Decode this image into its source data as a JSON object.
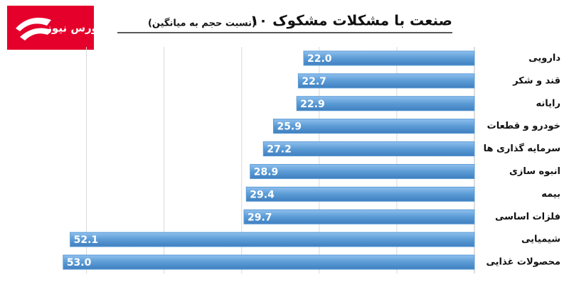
{
  "logo": "بورس نیوز",
  "chart_data": {
    "type": "bar",
    "orientation": "horizontal",
    "title": "۱۰ صنعت با مشکلات مشکوک",
    "subtitle": "(نسبت حجم به میانگین)",
    "categories": [
      "دارویی",
      "قند و شکر",
      "رایانه",
      "خودرو و قطعات",
      "سرمایه گذاری ها",
      "انبوه سازی",
      "بیمه",
      "فلزات اساسی",
      "شیمیایی",
      "محصولات غذایی"
    ],
    "values": [
      22.0,
      22.7,
      22.9,
      25.9,
      27.2,
      28.9,
      29.4,
      29.7,
      52.1,
      53.0
    ],
    "value_labels": [
      "22.0",
      "22.7",
      "22.9",
      "25.9",
      "27.2",
      "28.9",
      "29.4",
      "29.7",
      "52.1",
      "53.0"
    ],
    "color": "#5b9bd5",
    "xlim": [
      0,
      55
    ],
    "xticks": [
      10,
      20,
      30,
      40,
      50
    ],
    "grid": true
  }
}
